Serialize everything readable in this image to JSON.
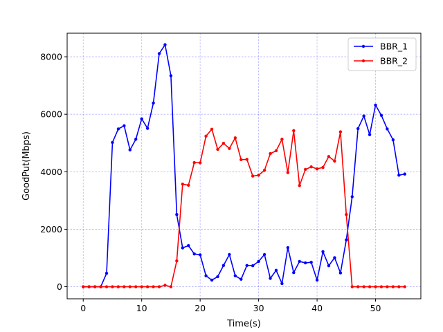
{
  "chart_data": {
    "type": "line",
    "title": "",
    "xlabel": "Time(s)",
    "ylabel": "GoodPut(Mbps)",
    "xlim": [
      -2.75,
      57.75
    ],
    "ylim": [
      -420,
      8820
    ],
    "xticks": [
      0,
      10,
      20,
      30,
      40,
      50
    ],
    "yticks": [
      0,
      2000,
      4000,
      6000,
      8000
    ],
    "grid": true,
    "legend_position": "top-right",
    "series": [
      {
        "name": "BBR_1",
        "color": "#0000ff",
        "x": [
          0,
          1,
          2,
          3,
          4,
          5,
          6,
          7,
          8,
          9,
          10,
          11,
          12,
          13,
          14,
          15,
          16,
          17,
          18,
          19,
          20,
          21,
          22,
          23,
          24,
          25,
          26,
          27,
          28,
          29,
          30,
          31,
          32,
          33,
          34,
          35,
          36,
          37,
          38,
          39,
          40,
          41,
          42,
          43,
          44,
          45,
          46,
          47,
          48,
          49,
          50,
          51,
          52,
          53,
          54,
          55
        ],
        "y": [
          0,
          0,
          0,
          0,
          470,
          5020,
          5490,
          5600,
          4760,
          5130,
          5840,
          5510,
          6390,
          8110,
          8420,
          7340,
          2510,
          1350,
          1430,
          1140,
          1110,
          380,
          230,
          350,
          740,
          1120,
          380,
          260,
          740,
          730,
          880,
          1120,
          290,
          570,
          110,
          1360,
          490,
          880,
          830,
          850,
          230,
          1220,
          730,
          1010,
          480,
          1630,
          3130,
          5500,
          5940,
          5290,
          6320,
          5960,
          5490,
          5110,
          3880,
          3920
        ]
      },
      {
        "name": "BBR_2",
        "color": "#ff0000",
        "x": [
          0,
          1,
          2,
          3,
          4,
          5,
          6,
          7,
          8,
          9,
          10,
          11,
          12,
          13,
          14,
          15,
          16,
          17,
          18,
          19,
          20,
          21,
          22,
          23,
          24,
          25,
          26,
          27,
          28,
          29,
          30,
          31,
          32,
          33,
          34,
          35,
          36,
          37,
          38,
          39,
          40,
          41,
          42,
          43,
          44,
          45,
          46,
          47,
          48,
          49,
          50,
          51,
          52,
          53,
          54,
          55
        ],
        "y": [
          0,
          0,
          0,
          0,
          0,
          0,
          0,
          0,
          0,
          0,
          0,
          0,
          0,
          0,
          50,
          0,
          900,
          3570,
          3530,
          4320,
          4310,
          5240,
          5480,
          4780,
          4990,
          4810,
          5180,
          4420,
          4430,
          3850,
          3880,
          4050,
          4630,
          4730,
          5130,
          3970,
          5430,
          3520,
          4080,
          4170,
          4100,
          4150,
          4530,
          4370,
          5390,
          2510,
          0,
          0,
          0,
          0,
          0,
          0,
          0,
          0,
          0,
          0
        ]
      }
    ]
  }
}
